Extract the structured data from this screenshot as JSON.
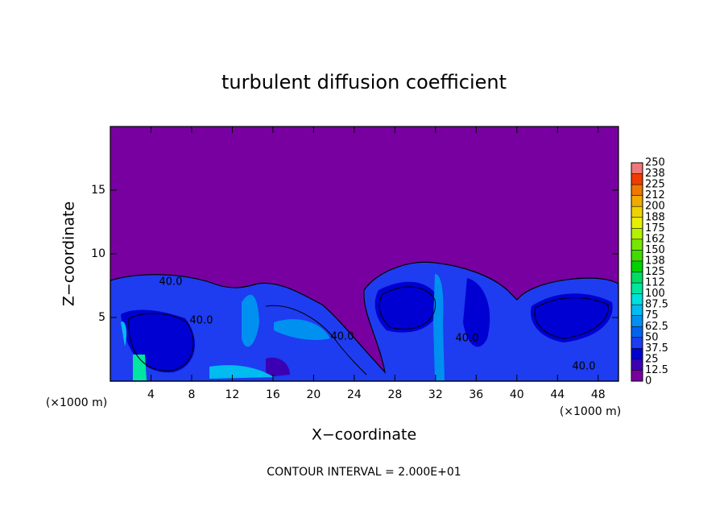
{
  "chart_data": {
    "type": "contour",
    "title": "turbulent diffusion coefficient",
    "x_label": "X−coordinate",
    "y_label": "Z−coordinate",
    "x_unit": "(×1000 m)",
    "x_unit_right": "(×1000 m)",
    "footnote": "CONTOUR INTERVAL = 2.000E+01",
    "xlim": [
      0,
      50
    ],
    "xticks": [
      4,
      8,
      12,
      16,
      20,
      24,
      28,
      32,
      36,
      40,
      44,
      48
    ],
    "ylim": [
      0,
      20
    ],
    "yticks": [
      5,
      10,
      15
    ],
    "contour_labels": [
      "40.0",
      "40.0",
      "40.0",
      "40.0",
      "40.0"
    ],
    "clim": [
      0,
      250
    ],
    "cticks": [
      0,
      12.5,
      25,
      37.5,
      50,
      62.5,
      75,
      87.5,
      100,
      {
        "value": 112.5,
        "label": "112"
      },
      125,
      {
        "value": 137.5,
        "label": "138"
      },
      150,
      {
        "value": 162.5,
        "label": "162"
      },
      175,
      {
        "value": 187.5,
        "label": "188"
      },
      200,
      {
        "value": 212.5,
        "label": "212"
      },
      225,
      {
        "value": 237.5,
        "label": "238"
      },
      250
    ],
    "colors": [
      "#7800a0",
      "#3c00b4",
      "#0000d2",
      "#1e3cf0",
      "#0064f0",
      "#0090f0",
      "#00bcf0",
      "#00e0dc",
      "#00e6a0",
      "#00dc64",
      "#00d200",
      "#40dc00",
      "#78e600",
      "#b4f000",
      "#e6f000",
      "#f0d200",
      "#f0aa00",
      "#f07800",
      "#f03c00",
      "#f07878"
    ]
  }
}
